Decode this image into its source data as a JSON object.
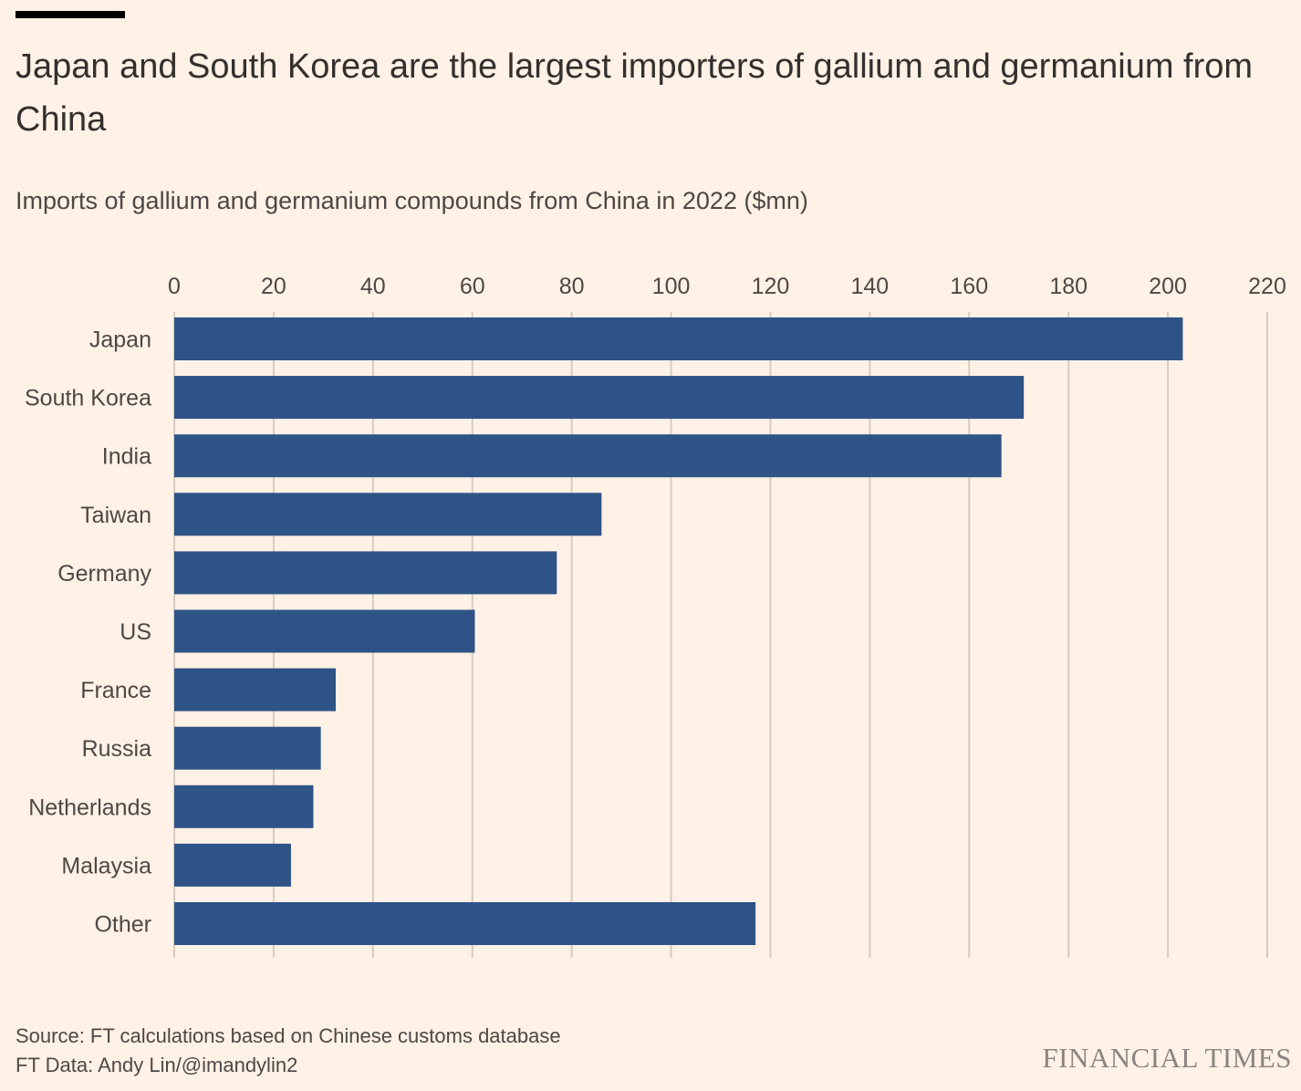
{
  "header": {
    "title": "Japan and South Korea are the largest importers of gallium and germanium from China",
    "subtitle": "Imports of gallium and germanium compounds from China in 2022 ($mn)"
  },
  "footer": {
    "source": "Source: FT calculations based on Chinese customs database",
    "credit": "FT Data: Andy Lin/@imandylin2",
    "brand": "FINANCIAL TIMES"
  },
  "colors": {
    "bar": "#2e5387",
    "gridline": "#d6cbc1",
    "background": "#fff1e5",
    "text": "#33302e"
  },
  "chart_data": {
    "type": "bar",
    "orientation": "horizontal",
    "title": "Japan and South Korea are the largest importers of gallium and germanium from China",
    "subtitle": "Imports of gallium and germanium compounds from China in 2022 ($mn)",
    "categories": [
      "Japan",
      "South Korea",
      "India",
      "Taiwan",
      "Germany",
      "US",
      "France",
      "Russia",
      "Netherlands",
      "Malaysia",
      "Other"
    ],
    "values": [
      203,
      171,
      166.5,
      86,
      77,
      60.5,
      32.5,
      29.5,
      28,
      23.5,
      117
    ],
    "xlim": [
      0,
      220
    ],
    "xticks": [
      0,
      20,
      40,
      60,
      80,
      100,
      120,
      140,
      160,
      180,
      200,
      220
    ],
    "xlabel": "",
    "ylabel": "",
    "grid": true,
    "axis_position": "top",
    "legend": "none"
  }
}
